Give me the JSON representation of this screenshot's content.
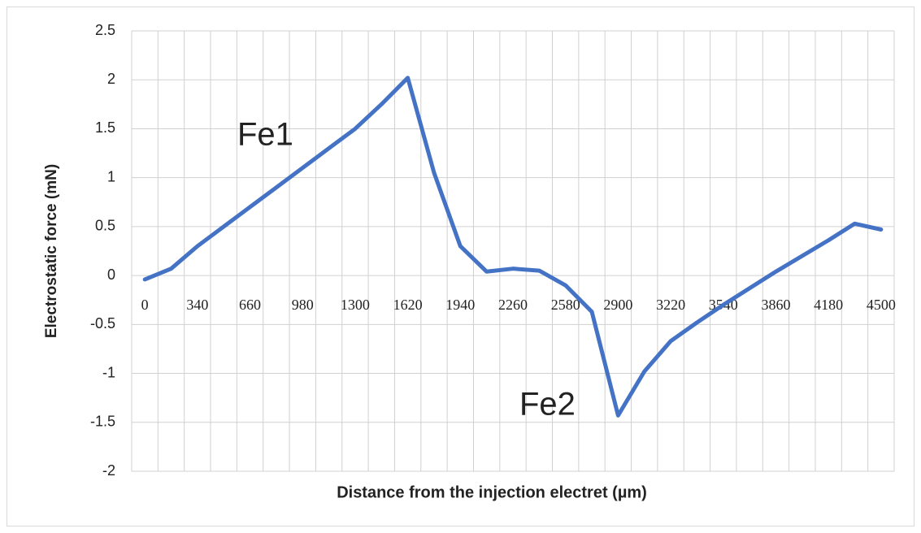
{
  "chart_data": {
    "type": "line",
    "x_label": "Distance from the injection electret (µm)",
    "y_label": "Electrostatic force (mN)",
    "categories": [
      "0",
      null,
      "340",
      null,
      "660",
      null,
      "980",
      null,
      "1300",
      null,
      "1620",
      null,
      "1940",
      null,
      "2260",
      null,
      "2580",
      null,
      "2900",
      null,
      "3220",
      null,
      "3540",
      null,
      "3860",
      null,
      "4180",
      null,
      "4500"
    ],
    "series": [
      {
        "color": "#4472c4",
        "values": [
          -0.04,
          0.07,
          0.3,
          0.5,
          0.7,
          0.9,
          1.1,
          1.3,
          1.5,
          1.75,
          2.02,
          1.05,
          0.3,
          0.04,
          0.07,
          0.05,
          -0.1,
          -0.37,
          -1.43,
          -0.98,
          -0.67,
          -0.48,
          -0.3,
          -0.13,
          0.04,
          0.2,
          0.36,
          0.53,
          0.47
        ]
      }
    ],
    "annotations": [
      "Fe1",
      "Fe2"
    ],
    "ylim": [
      -2,
      2.5
    ],
    "yticks": [
      -2,
      -1.5,
      -1,
      -0.5,
      0,
      0.5,
      1,
      1.5,
      2,
      2.5
    ],
    "grid": true
  }
}
